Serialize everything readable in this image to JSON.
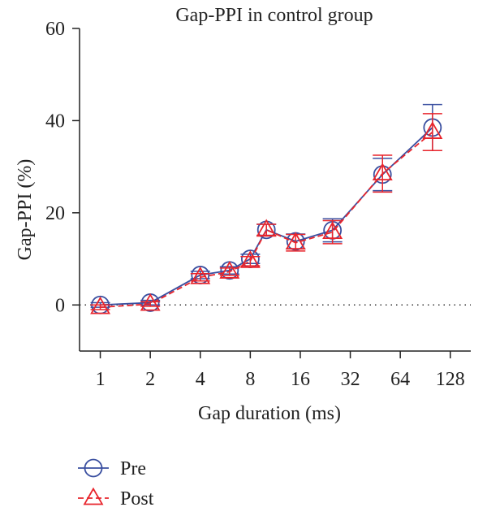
{
  "chart_data": {
    "type": "line",
    "title": "Gap-PPI in control group",
    "xlabel": "Gap duration (ms)",
    "ylabel": "Gap-PPI (%)",
    "x_scale": "log2",
    "x_ticks": [
      1,
      2,
      4,
      8,
      16,
      32,
      64,
      128
    ],
    "x_tick_labels": [
      "1",
      "2",
      "4",
      "8",
      "16",
      "32",
      "64",
      "128"
    ],
    "y_ticks": [
      0,
      20,
      40,
      60
    ],
    "y_tick_labels": [
      "0",
      "20",
      "40",
      "60"
    ],
    "xlim": [
      0.75,
      170
    ],
    "ylim": [
      -10,
      60
    ],
    "reference_line": 0,
    "x": [
      1,
      2,
      4,
      6,
      8,
      10,
      15,
      25,
      50,
      100
    ],
    "series": [
      {
        "name": "Pre",
        "marker": "circle",
        "color": "#3a4fa0",
        "line_style": "solid",
        "values": [
          0,
          0.5,
          6.5,
          7.5,
          10,
          16.3,
          13.8,
          16.2,
          28.3,
          38.5
        ],
        "errors": [
          0.5,
          0.5,
          0.8,
          0.8,
          1.0,
          1.2,
          1.6,
          2.5,
          3.5,
          5.0
        ]
      },
      {
        "name": "Post",
        "marker": "triangle",
        "color": "#e8252c",
        "line_style": "dashed",
        "values": [
          -0.5,
          0.2,
          6.0,
          7.2,
          9.5,
          16.3,
          13.5,
          15.8,
          28.5,
          37.5
        ],
        "errors": [
          0.5,
          0.5,
          0.8,
          0.8,
          1.0,
          1.2,
          1.8,
          2.5,
          4.0,
          4.0
        ]
      }
    ],
    "legend_position": "bottom-left",
    "grid": false
  }
}
